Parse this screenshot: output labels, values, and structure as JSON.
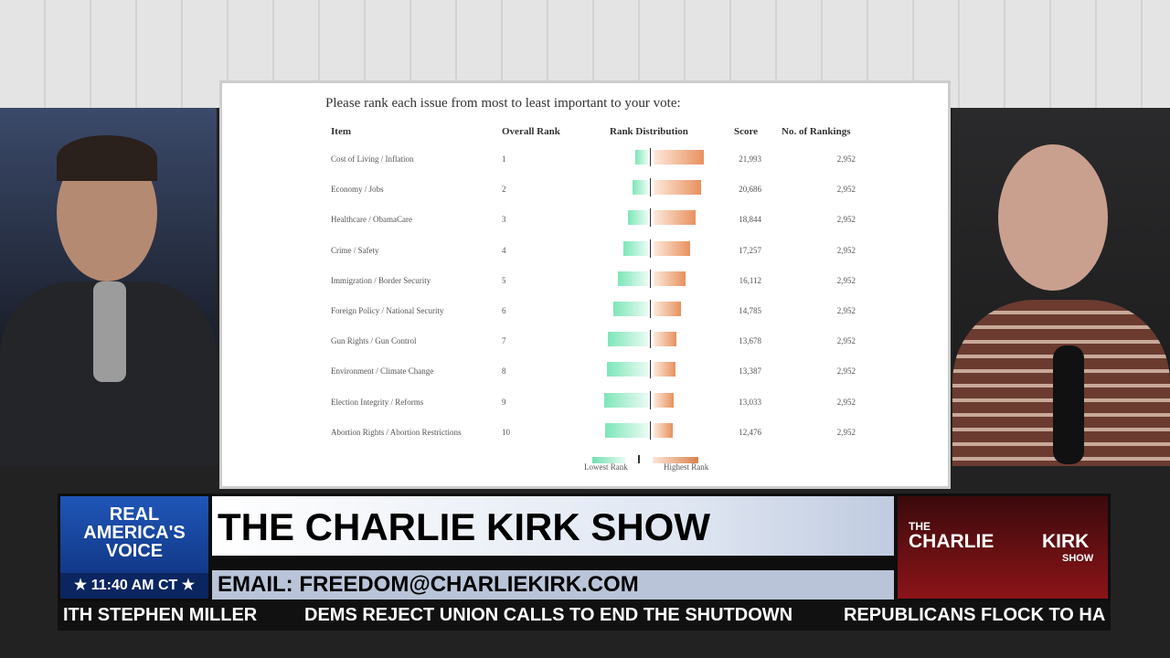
{
  "question": "Please rank each issue from most to least important to your vote:",
  "table": {
    "headers": [
      "Item",
      "Overall Rank",
      "Rank Distribution",
      "Score",
      "No. of Rankings"
    ],
    "rows": [
      [
        "Cost of Living / Inflation",
        "1",
        "21,993",
        "2,952"
      ],
      [
        "Economy / Jobs",
        "2",
        "20,686",
        "2,952"
      ],
      [
        "Healthcare / ObamaCare",
        "3",
        "18,844",
        "2,952"
      ],
      [
        "Crime / Safety",
        "4",
        "17,257",
        "2,952"
      ],
      [
        "Immigration / Border Security",
        "5",
        "16,112",
        "2,952"
      ],
      [
        "Foreign Policy / National Security",
        "6",
        "14,785",
        "2,952"
      ],
      [
        "Gun Rights / Gun Control",
        "7",
        "13,678",
        "2,952"
      ],
      [
        "Environment / Climate Change",
        "8",
        "13,387",
        "2,952"
      ],
      [
        "Election Integrity / Reforms",
        "9",
        "13,033",
        "2,952"
      ],
      [
        "Abortion Rights / Abortion Restrictions",
        "10",
        "12,476",
        "2,952"
      ]
    ]
  },
  "legend": {
    "low": "Lowest Rank",
    "high": "Highest Rank"
  },
  "banner": {
    "network": [
      "REAL",
      "AMERICA'S",
      "VOICE"
    ],
    "time": "11:40 AM CT",
    "show": "THE CHARLIE KIRK SHOW",
    "email": "EMAIL: FREEDOM@CHARLIEKIRK.COM",
    "logo": [
      "THE",
      "CHARLIE",
      "KIRK",
      "SHOW"
    ]
  },
  "ticker": [
    "ITH STEPHEN MILLER",
    "DEMS REJECT UNION CALLS TO END THE SHUTDOWN",
    "REPUBLICANS FLOCK TO HA"
  ]
}
